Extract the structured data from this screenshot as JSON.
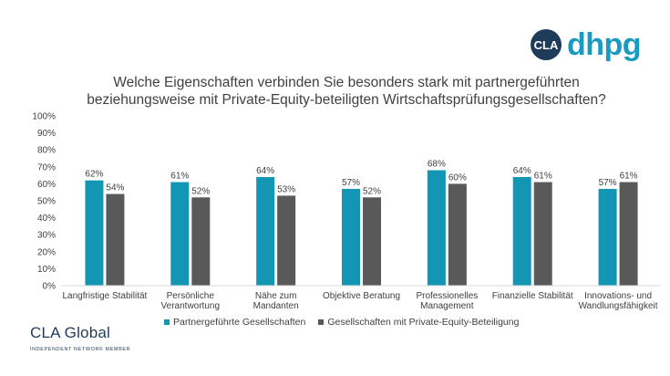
{
  "brand": {
    "logo_text": "dhpg",
    "logo_mark_label": "CLA",
    "footer_name": "CLA Global",
    "footer_sub": "INDEPENDENT NETWORK MEMBER",
    "accent_color": "#1a9ac0"
  },
  "chart_data": {
    "type": "bar",
    "title_lines": [
      "Welche Eigenschaften verbinden Sie besonders stark mit partnergeführten",
      "beziehungsweise mit Private-Equity-beteiligten Wirtschaftsprüfungsgesellschaften?"
    ],
    "categories": [
      [
        "Langfristige Stabilität"
      ],
      [
        "Persönliche",
        "Verantwortung"
      ],
      [
        "Nähe zum",
        "Mandanten"
      ],
      [
        "Objektive Beratung"
      ],
      [
        "Professionelles",
        "Management"
      ],
      [
        "Finanzielle Stabilität"
      ],
      [
        "Innovations- und",
        "Wandlungsfähigkeit"
      ]
    ],
    "series": [
      {
        "name": "Partnergeführte Gesellschaften",
        "color": "#1396b4",
        "values": [
          62,
          61,
          64,
          57,
          68,
          64,
          57
        ]
      },
      {
        "name": "Gesellschaften mit Private-Equity-Beteiligung",
        "color": "#595959",
        "values": [
          54,
          52,
          53,
          52,
          60,
          61,
          61
        ]
      }
    ],
    "data_label_suffix": "%",
    "ylim": [
      0,
      100
    ],
    "yticks": [
      0,
      10,
      20,
      30,
      40,
      50,
      60,
      70,
      80,
      90,
      100
    ],
    "ytick_suffix": "%",
    "xlabel": "",
    "ylabel": "",
    "grid": false,
    "legend_position": "bottom"
  }
}
